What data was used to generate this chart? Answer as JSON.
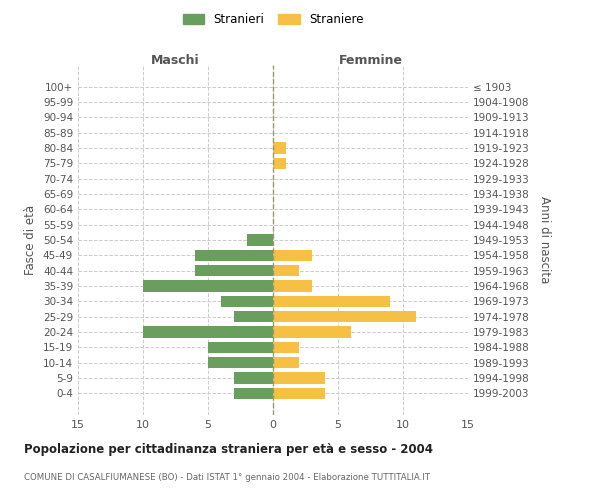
{
  "age_groups": [
    "0-4",
    "5-9",
    "10-14",
    "15-19",
    "20-24",
    "25-29",
    "30-34",
    "35-39",
    "40-44",
    "45-49",
    "50-54",
    "55-59",
    "60-64",
    "65-69",
    "70-74",
    "75-79",
    "80-84",
    "85-89",
    "90-94",
    "95-99",
    "100+"
  ],
  "birth_years": [
    "1999-2003",
    "1994-1998",
    "1989-1993",
    "1984-1988",
    "1979-1983",
    "1974-1978",
    "1969-1973",
    "1964-1968",
    "1959-1963",
    "1954-1958",
    "1949-1953",
    "1944-1948",
    "1939-1943",
    "1934-1938",
    "1929-1933",
    "1924-1928",
    "1919-1923",
    "1914-1918",
    "1909-1913",
    "1904-1908",
    "≤ 1903"
  ],
  "maschi": [
    3,
    3,
    5,
    5,
    10,
    3,
    4,
    10,
    6,
    6,
    2,
    0,
    0,
    0,
    0,
    0,
    0,
    0,
    0,
    0,
    0
  ],
  "femmine": [
    4,
    4,
    2,
    2,
    6,
    11,
    9,
    3,
    2,
    3,
    0,
    0,
    0,
    0,
    0,
    1,
    1,
    0,
    0,
    0,
    0
  ],
  "maschi_color": "#6a9e5e",
  "femmine_color": "#f5c044",
  "background_color": "#ffffff",
  "grid_color": "#cccccc",
  "title": "Popolazione per cittadinanza straniera per età e sesso - 2004",
  "subtitle": "COMUNE DI CASALFIUMANESE (BO) - Dati ISTAT 1° gennaio 2004 - Elaborazione TUTTITALIA.IT",
  "ylabel_left": "Fasce di età",
  "ylabel_right": "Anni di nascita",
  "xlabel_maschi": "Maschi",
  "xlabel_femmine": "Femmine",
  "legend_maschi": "Stranieri",
  "legend_femmine": "Straniere",
  "xlim": 15
}
